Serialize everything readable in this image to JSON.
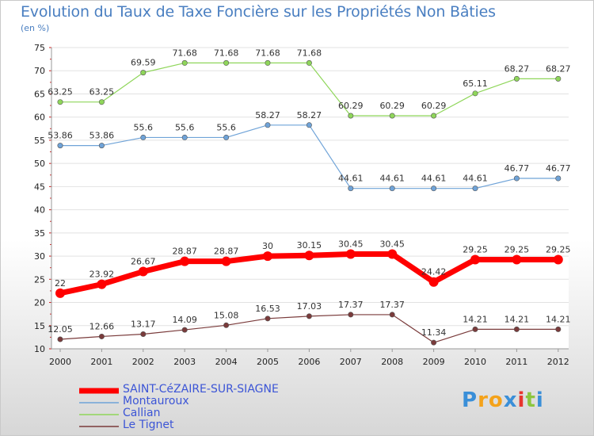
{
  "chart_data": {
    "type": "line",
    "title": "Evolution du Taux de Taxe Foncière sur les Propriétés Non Bâties",
    "ylabel": "(en %)",
    "xlabel": "",
    "ylim": [
      10,
      75
    ],
    "yticks": [
      "10",
      "15",
      "20",
      "25",
      "30",
      "35",
      "40",
      "45",
      "50",
      "55",
      "60",
      "65",
      "70",
      "75"
    ],
    "categories": [
      "2000",
      "2001",
      "2002",
      "2003",
      "2004",
      "2005",
      "2006",
      "2007",
      "2008",
      "2009",
      "2010",
      "2011",
      "2012"
    ],
    "series": [
      {
        "name": "SAINT-CéZAIRE-SUR-SIAGNE",
        "color": "#ff0000",
        "values": [
          22,
          23.92,
          26.67,
          28.87,
          28.87,
          30,
          30.15,
          30.45,
          30.45,
          24.42,
          29.25,
          29.25,
          29.25
        ],
        "labels": [
          "22",
          "23.92",
          "26.67",
          "28.87",
          "28.87",
          "30",
          "30.15",
          "30.45",
          "30.45",
          "24.42",
          "29.25",
          "29.25",
          "29.25"
        ]
      },
      {
        "name": "Montauroux",
        "color": "#6fa3d8",
        "values": [
          53.86,
          53.86,
          55.6,
          55.6,
          55.6,
          58.27,
          58.27,
          44.61,
          44.61,
          44.61,
          44.61,
          46.77,
          46.77
        ],
        "labels": [
          "53.86",
          "53.86",
          "55.6",
          "55.6",
          "55.6",
          "58.27",
          "58.27",
          "44.61",
          "44.61",
          "44.61",
          "44.61",
          "46.77",
          "46.77"
        ]
      },
      {
        "name": "Callian",
        "color": "#8fd65a",
        "values": [
          63.25,
          63.25,
          69.59,
          71.68,
          71.68,
          71.68,
          71.68,
          60.29,
          60.29,
          60.29,
          65.11,
          68.27,
          68.27
        ],
        "labels": [
          "63.25",
          "63.25",
          "69.59",
          "71.68",
          "71.68",
          "71.68",
          "71.68",
          "60.29",
          "60.29",
          "60.29",
          "65.11",
          "68.27",
          "68.27"
        ]
      },
      {
        "name": "Le Tignet",
        "color": "#7a3b3b",
        "values": [
          12.05,
          12.66,
          13.17,
          14.09,
          15.08,
          16.53,
          17.03,
          17.37,
          17.37,
          11.34,
          14.21,
          14.21,
          14.21
        ],
        "labels": [
          "12.05",
          "12.66",
          "13.17",
          "14.09",
          "15.08",
          "16.53",
          "17.03",
          "17.37",
          "17.37",
          "11.34",
          "14.21",
          "14.21",
          "14.21"
        ]
      }
    ]
  },
  "legend": [
    {
      "label": "SAINT-CéZAIRE-SUR-SIAGNE",
      "color": "#ff0000"
    },
    {
      "label": "Montauroux",
      "color": "#6fa3d8"
    },
    {
      "label": "Callian",
      "color": "#8fd65a"
    },
    {
      "label": "Le Tignet",
      "color": "#7a3b3b"
    }
  ],
  "logo": {
    "letters": [
      "P",
      "r",
      "o",
      "x",
      "i",
      "t",
      "i"
    ],
    "colors": [
      "#3a8fd8",
      "#f4a21a",
      "#f4a21a",
      "#3a8fd8",
      "#e8362e",
      "#8cc63f",
      "#3a8fd8"
    ]
  }
}
